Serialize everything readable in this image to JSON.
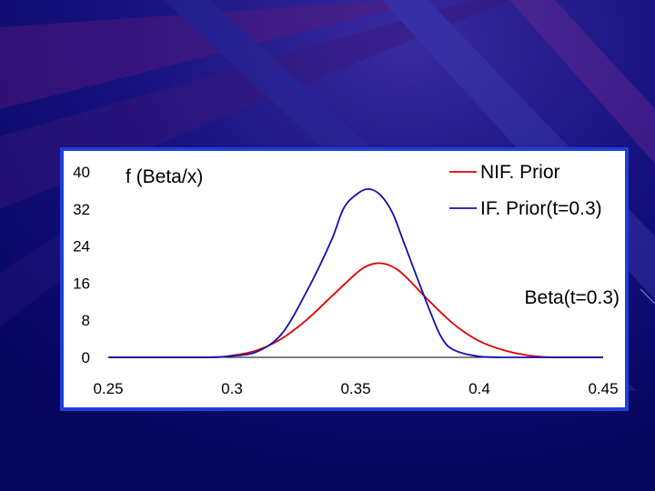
{
  "theme": {
    "background": "#08086a",
    "frame_color": "#1f3fd8",
    "nif_color": "#e00000",
    "if_color": "#1010b0"
  },
  "chart_data": {
    "type": "line",
    "ylabel": "f (Beta/x)",
    "annotation": "Beta(t=0.3)",
    "xlim": [
      0.25,
      0.45
    ],
    "ylim": [
      0,
      40
    ],
    "xticks": [
      "0.25",
      "0.3",
      "0.35",
      "0.4",
      "0.45"
    ],
    "yticks": [
      "0",
      "8",
      "16",
      "24",
      "32",
      "40"
    ],
    "legend_position": "top-right",
    "grid": false,
    "series": [
      {
        "name": "NIF. Prior",
        "color": "#e00000",
        "x": [
          0.25,
          0.29,
          0.3,
          0.31,
          0.32,
          0.33,
          0.34,
          0.35,
          0.355,
          0.36,
          0.365,
          0.37,
          0.38,
          0.39,
          0.4,
          0.41,
          0.42,
          0.43,
          0.45
        ],
        "y": [
          0,
          0,
          0.4,
          1.5,
          4,
          8,
          13,
          18,
          19.8,
          20.3,
          19.5,
          17.5,
          12,
          7,
          3.5,
          1.5,
          0.4,
          0,
          0
        ]
      },
      {
        "name": "IF. Prior(t=0.3)",
        "color": "#1010b0",
        "x": [
          0.25,
          0.29,
          0.3,
          0.31,
          0.32,
          0.33,
          0.34,
          0.345,
          0.35,
          0.355,
          0.36,
          0.365,
          0.37,
          0.38,
          0.385,
          0.39,
          0.4,
          0.41,
          0.45
        ],
        "y": [
          0,
          0,
          0.3,
          1.2,
          5,
          14,
          25,
          32,
          35,
          36.3,
          35,
          31,
          24,
          10,
          4,
          1.5,
          0.2,
          0,
          0
        ]
      }
    ]
  }
}
